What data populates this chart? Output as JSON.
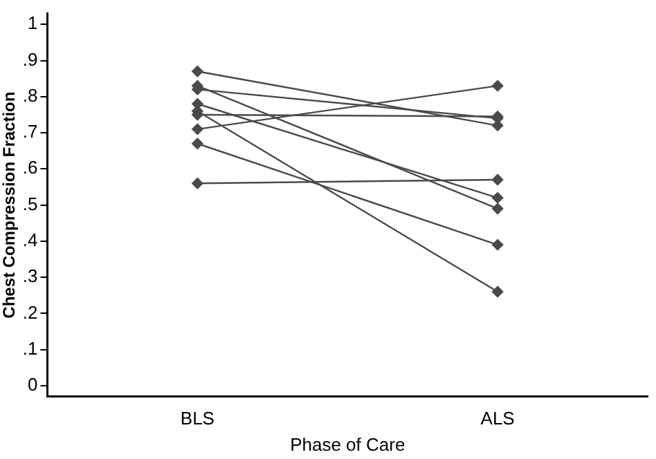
{
  "chart_data": {
    "type": "line",
    "xlabel": "Phase of Care",
    "ylabel": "Chest Compression Fraction",
    "categories": [
      "BLS",
      "ALS"
    ],
    "series": [
      {
        "color": "#4a4a4a",
        "values": [
          0.87,
          0.72
        ]
      },
      {
        "color": "#4a4a4a",
        "values": [
          0.83,
          0.49
        ]
      },
      {
        "color": "#4a4a4a",
        "values": [
          0.82,
          0.74
        ]
      },
      {
        "color": "#4a4a4a",
        "values": [
          0.78,
          0.52
        ]
      },
      {
        "color": "#4a4a4a",
        "values": [
          0.76,
          0.26
        ]
      },
      {
        "color": "#4a4a4a",
        "values": [
          0.75,
          0.745
        ]
      },
      {
        "color": "#4a4a4a",
        "values": [
          0.71,
          0.83
        ]
      },
      {
        "color": "#4a4a4a",
        "values": [
          0.67,
          0.39
        ]
      },
      {
        "color": "#4a4a4a",
        "values": [
          0.56,
          0.57
        ]
      }
    ],
    "ylim": [
      -0.03,
      1.03
    ],
    "yticks": [
      0,
      {
        "value": 0.1,
        "label": ".1"
      },
      {
        "value": 0.2,
        "label": ".2"
      },
      {
        "value": 0.3,
        "label": ".3"
      },
      {
        "value": 0.4,
        "label": ".4"
      },
      {
        "value": 0.5,
        "label": ".5"
      },
      {
        "value": 0.6,
        "label": ".6"
      },
      {
        "value": 0.7,
        "label": ".7"
      },
      {
        "value": 0.8,
        "label": ".8"
      },
      {
        "value": 0.9,
        "label": ".9"
      },
      1
    ],
    "grid": false,
    "legend": false,
    "marker": "diamond",
    "line_style": "solid"
  }
}
